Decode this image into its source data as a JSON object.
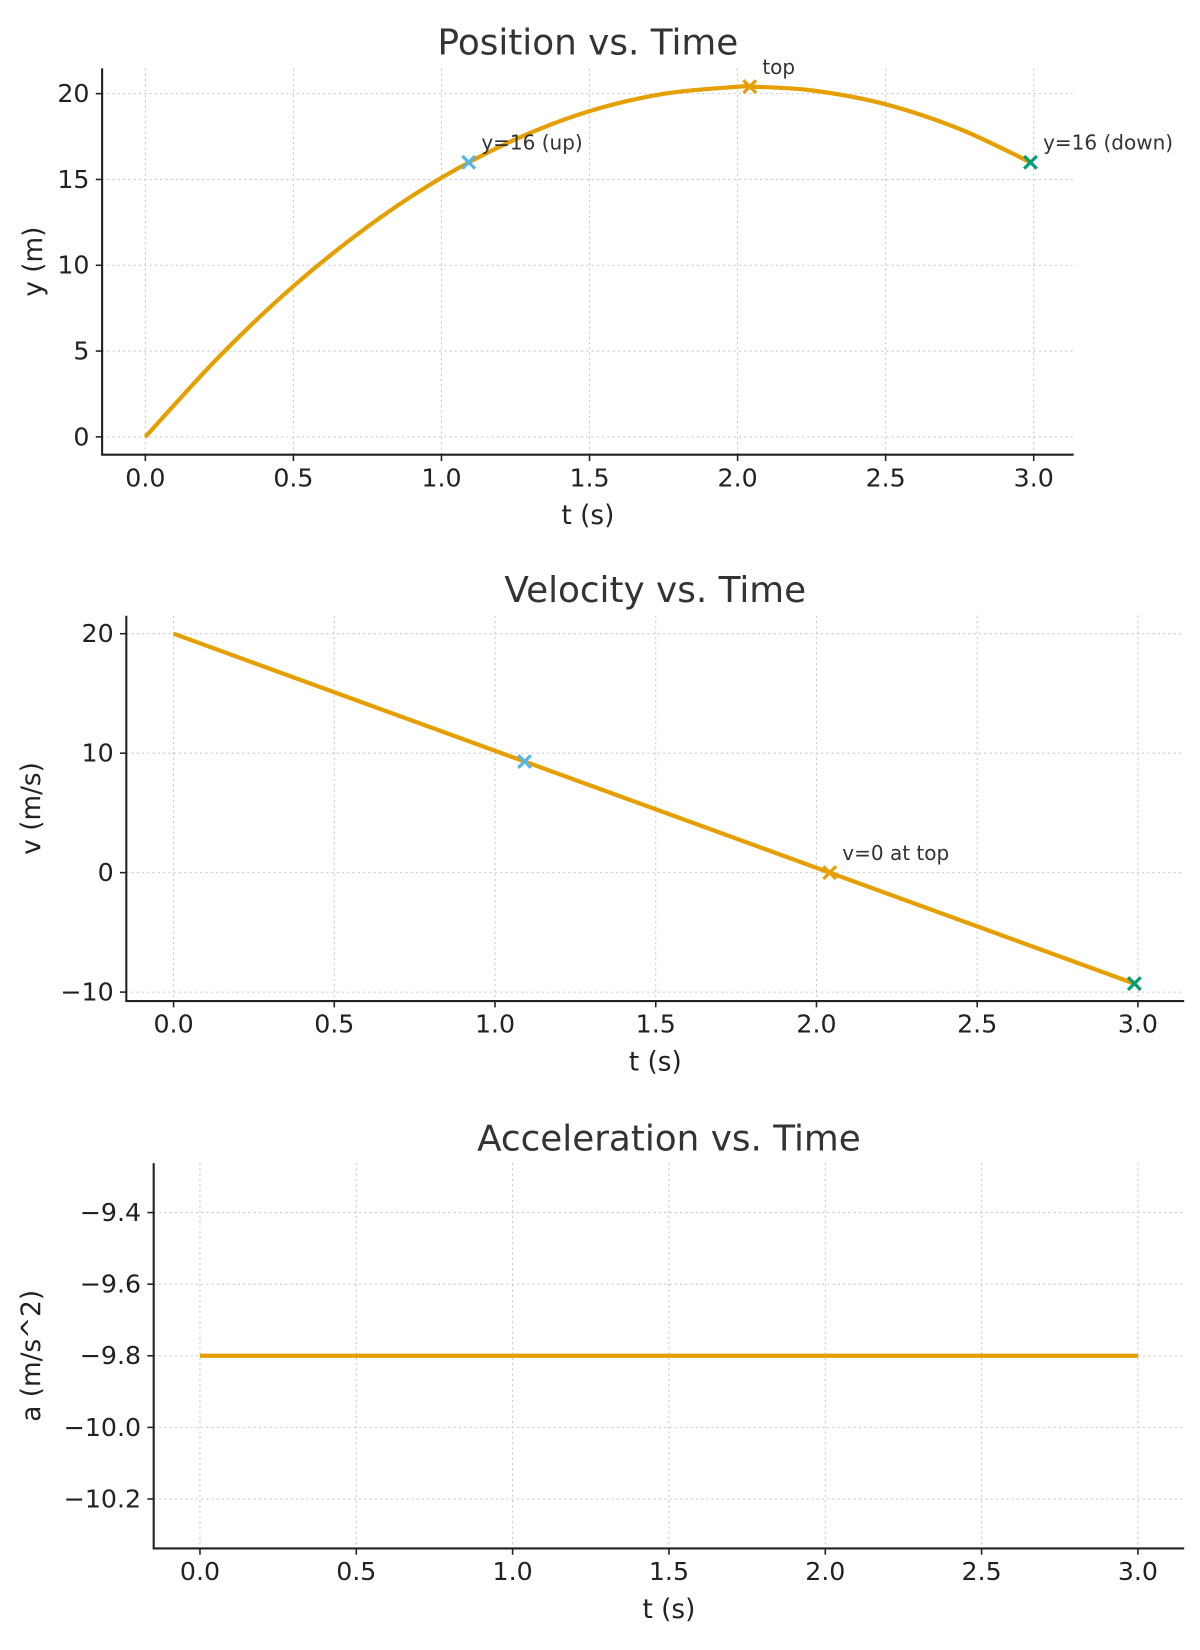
{
  "colors": {
    "line": "#E69F00",
    "up": "#56B4E9",
    "top": "#E69F00",
    "down": "#009E73"
  },
  "chart_data": [
    {
      "type": "line",
      "title": "Position vs. Time",
      "xlabel": "t (s)",
      "ylabel": "y (m)",
      "xlim": [
        -0.146,
        3.135
      ],
      "ylim": [
        -1.04,
        21.47
      ],
      "grid": true,
      "xticks": [
        0.0,
        0.5,
        1.0,
        1.5,
        2.0,
        2.5,
        3.0
      ],
      "xtick_labels": [
        "0.0",
        "0.5",
        "1.0",
        "1.5",
        "2.0",
        "2.5",
        "3.0"
      ],
      "yticks": [
        0,
        5,
        10,
        15,
        20
      ],
      "ytick_labels": [
        "0",
        "5",
        "10",
        "15",
        "20"
      ],
      "series": [
        {
          "x": [
            0,
            0.25,
            0.5,
            0.75,
            1.0,
            1.25,
            1.5,
            1.75,
            2.0,
            2.041,
            2.25,
            2.5,
            2.75,
            2.989
          ],
          "y": [
            0,
            4.69,
            8.78,
            12.24,
            15.1,
            17.34,
            18.98,
            19.99,
            20.4,
            20.41,
            20.19,
            19.38,
            17.94,
            16.0
          ]
        }
      ],
      "markers": [
        {
          "x": 1.092,
          "y": 16.0,
          "color_key": "up",
          "label": "y=16 (up)"
        },
        {
          "x": 2.041,
          "y": 20.41,
          "color_key": "top",
          "label": "top"
        },
        {
          "x": 2.989,
          "y": 16.0,
          "color_key": "down",
          "label": "y=16 (down)"
        }
      ]
    },
    {
      "type": "line",
      "title": "Velocity vs. Time",
      "xlabel": "t (s)",
      "ylabel": "v (m/s)",
      "xlim": [
        -0.147,
        3.144
      ],
      "ylim": [
        -10.75,
        21.5
      ],
      "grid": true,
      "xticks": [
        0.0,
        0.5,
        1.0,
        1.5,
        2.0,
        2.5,
        3.0
      ],
      "xtick_labels": [
        "0.0",
        "0.5",
        "1.0",
        "1.5",
        "2.0",
        "2.5",
        "3.0"
      ],
      "yticks": [
        -10,
        0,
        10,
        20
      ],
      "ytick_labels": [
        "−10",
        "0",
        "10",
        "20"
      ],
      "series": [
        {
          "x": [
            0,
            2.989
          ],
          "y": [
            20,
            -9.29
          ]
        }
      ],
      "markers": [
        {
          "x": 1.092,
          "y": 9.3,
          "color_key": "up",
          "label": ""
        },
        {
          "x": 2.041,
          "y": 0,
          "color_key": "top",
          "label": "v=0 at top"
        },
        {
          "x": 2.989,
          "y": -9.29,
          "color_key": "down",
          "label": ""
        }
      ]
    },
    {
      "type": "line",
      "title": "Acceleration vs. Time",
      "xlabel": "t (s)",
      "ylabel": "a (m/s^2)",
      "xlim": [
        -0.148,
        3.148
      ],
      "ylim": [
        -10.338,
        -9.262
      ],
      "grid": true,
      "xticks": [
        0.0,
        0.5,
        1.0,
        1.5,
        2.0,
        2.5,
        3.0
      ],
      "xtick_labels": [
        "0.0",
        "0.5",
        "1.0",
        "1.5",
        "2.0",
        "2.5",
        "3.0"
      ],
      "yticks": [
        -10.2,
        -10.0,
        -9.8,
        -9.6,
        -9.4
      ],
      "ytick_labels": [
        "−10.2",
        "−10.0",
        "−9.8",
        "−9.6",
        "−9.4"
      ],
      "series": [
        {
          "x": [
            0,
            3.0
          ],
          "y": [
            -9.8,
            -9.8
          ]
        }
      ],
      "markers": []
    }
  ]
}
